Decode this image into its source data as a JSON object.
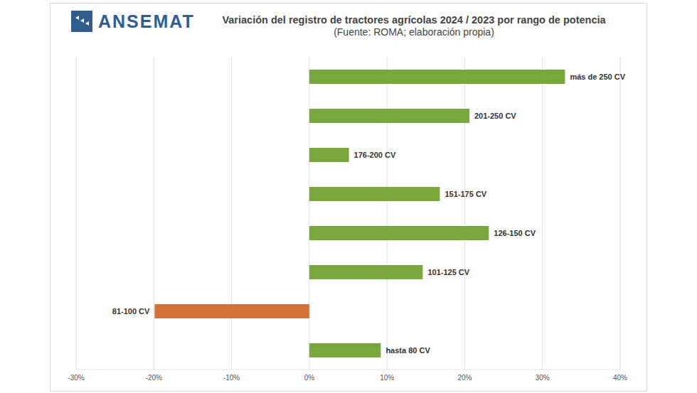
{
  "chart_data": {
    "type": "bar",
    "orientation": "horizontal",
    "title": "Variación del registro de tractores agrícolas 2024 / 2023 por rango de potencia",
    "subtitle": "(Fuente: ROMA; elaboración propia)",
    "annotations": [
      "ANSEMAT"
    ],
    "categories": [
      "más de 250 CV",
      "201-250 CV",
      "176-200 CV",
      "151-175 CV",
      "126-150 CV",
      "101-125 CV",
      "81-100 CV",
      "hasta 80 CV"
    ],
    "values": [
      32.9,
      20.6,
      5.1,
      16.8,
      23.1,
      14.6,
      -19.9,
      9.2
    ],
    "colors": [
      "#78a83b",
      "#78a83b",
      "#78a83b",
      "#78a83b",
      "#78a83b",
      "#78a83b",
      "#d4713a",
      "#78a83b"
    ],
    "xlim": [
      -30,
      40
    ],
    "xticks": [
      {
        "value": -30,
        "label": "-30%"
      },
      {
        "value": -20,
        "label": "-20%"
      },
      {
        "value": -10,
        "label": "-10%"
      },
      {
        "value": 0,
        "label": "0%"
      },
      {
        "value": 10,
        "label": "10%"
      },
      {
        "value": 20,
        "label": "20%"
      },
      {
        "value": 30,
        "label": "30%"
      },
      {
        "value": 40,
        "label": "40%"
      }
    ],
    "grid": true
  }
}
